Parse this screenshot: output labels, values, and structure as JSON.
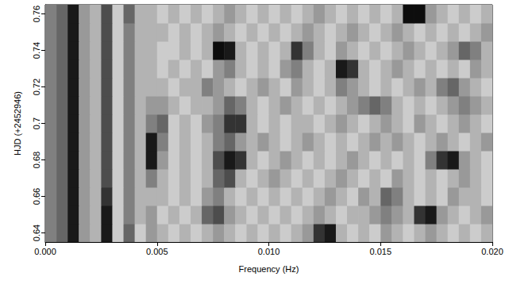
{
  "chart_data": {
    "type": "heatmap",
    "xlabel": "Frequency (Hz)",
    "ylabel": "HJD (+2452946)",
    "xlim": [
      0,
      0.02
    ],
    "ylim": [
      0.635,
      0.765
    ],
    "xticks": [
      {
        "value": 0,
        "label": "0.000"
      },
      {
        "value": 0.005,
        "label": "0.005"
      },
      {
        "value": 0.01,
        "label": "0.010"
      },
      {
        "value": 0.015,
        "label": "0.015"
      },
      {
        "value": 0.02,
        "label": "0.020"
      }
    ],
    "yticks": [
      0.64,
      0.66,
      0.68,
      0.7,
      0.72,
      0.74,
      0.76
    ],
    "zlim": [
      0,
      1
    ],
    "x_bins": [
      0,
      0.0005,
      0.001,
      0.0015,
      0.002,
      0.0025,
      0.003,
      0.0035,
      0.004,
      0.0045,
      0.005,
      0.0055,
      0.006,
      0.0065,
      0.007,
      0.0075,
      0.008,
      0.0085,
      0.009,
      0.0095,
      0.01,
      0.0105,
      0.011,
      0.0115,
      0.012,
      0.0125,
      0.013,
      0.0135,
      0.014,
      0.0145,
      0.015,
      0.0155,
      0.016,
      0.0165,
      0.017,
      0.0175,
      0.018,
      0.0185,
      0.019,
      0.0195,
      0.02
    ],
    "y_bins": [
      0.635,
      0.645,
      0.655,
      0.665,
      0.675,
      0.685,
      0.695,
      0.705,
      0.715,
      0.725,
      0.735,
      0.745,
      0.755,
      0.765
    ],
    "z": [
      [
        0.5,
        0.6,
        0.9,
        0.4,
        0.3,
        0.9,
        0.2,
        0.6,
        0.2,
        0.4,
        0.3,
        0.2,
        0.3,
        0.2,
        0.3,
        0.4,
        0.3,
        0.2,
        0.3,
        0.2,
        0.3,
        0.2,
        0.3,
        0.4,
        0.8,
        0.9,
        0.3,
        0.2,
        0.3,
        0.2,
        0.4,
        0.3,
        0.2,
        0.3,
        0.4,
        0.3,
        0.2,
        0.3,
        0.2,
        0.3
      ],
      [
        0.5,
        0.6,
        0.9,
        0.4,
        0.3,
        0.9,
        0.2,
        0.5,
        0.3,
        0.4,
        0.2,
        0.3,
        0.2,
        0.3,
        0.6,
        0.7,
        0.4,
        0.3,
        0.2,
        0.3,
        0.2,
        0.3,
        0.2,
        0.3,
        0.4,
        0.3,
        0.2,
        0.3,
        0.3,
        0.4,
        0.5,
        0.4,
        0.3,
        0.8,
        0.9,
        0.4,
        0.3,
        0.2,
        0.3,
        0.4
      ],
      [
        0.5,
        0.6,
        0.9,
        0.4,
        0.3,
        0.8,
        0.2,
        0.5,
        0.3,
        0.3,
        0.3,
        0.2,
        0.3,
        0.2,
        0.4,
        0.5,
        0.3,
        0.2,
        0.3,
        0.2,
        0.3,
        0.2,
        0.3,
        0.2,
        0.3,
        0.4,
        0.3,
        0.2,
        0.4,
        0.3,
        0.6,
        0.5,
        0.3,
        0.2,
        0.3,
        0.2,
        0.4,
        0.3,
        0.3,
        0.2
      ],
      [
        0.5,
        0.6,
        0.9,
        0.4,
        0.3,
        0.7,
        0.2,
        0.5,
        0.3,
        0.5,
        0.3,
        0.2,
        0.3,
        0.2,
        0.3,
        0.6,
        0.7,
        0.3,
        0.2,
        0.3,
        0.4,
        0.3,
        0.2,
        0.3,
        0.2,
        0.3,
        0.4,
        0.3,
        0.2,
        0.3,
        0.2,
        0.4,
        0.3,
        0.2,
        0.3,
        0.2,
        0.3,
        0.4,
        0.3,
        0.2
      ],
      [
        0.5,
        0.6,
        0.9,
        0.4,
        0.3,
        0.7,
        0.2,
        0.5,
        0.3,
        0.9,
        0.4,
        0.2,
        0.3,
        0.2,
        0.3,
        0.7,
        0.9,
        0.8,
        0.3,
        0.2,
        0.3,
        0.4,
        0.3,
        0.2,
        0.3,
        0.2,
        0.3,
        0.4,
        0.3,
        0.2,
        0.3,
        0.2,
        0.3,
        0.2,
        0.5,
        0.8,
        0.9,
        0.4,
        0.3,
        0.2
      ],
      [
        0.5,
        0.6,
        0.9,
        0.4,
        0.3,
        0.7,
        0.2,
        0.5,
        0.3,
        0.9,
        0.5,
        0.2,
        0.3,
        0.2,
        0.3,
        0.5,
        0.6,
        0.4,
        0.3,
        0.4,
        0.3,
        0.2,
        0.3,
        0.4,
        0.3,
        0.2,
        0.3,
        0.2,
        0.3,
        0.4,
        0.3,
        0.4,
        0.3,
        0.2,
        0.3,
        0.4,
        0.3,
        0.2,
        0.3,
        0.4
      ],
      [
        0.5,
        0.6,
        0.9,
        0.4,
        0.3,
        0.7,
        0.2,
        0.5,
        0.3,
        0.5,
        0.6,
        0.2,
        0.3,
        0.2,
        0.4,
        0.5,
        0.8,
        0.8,
        0.3,
        0.2,
        0.3,
        0.2,
        0.3,
        0.3,
        0.2,
        0.3,
        0.4,
        0.3,
        0.2,
        0.3,
        0.4,
        0.3,
        0.2,
        0.4,
        0.3,
        0.2,
        0.3,
        0.4,
        0.3,
        0.2
      ],
      [
        0.5,
        0.6,
        0.9,
        0.4,
        0.3,
        0.7,
        0.2,
        0.5,
        0.3,
        0.4,
        0.4,
        0.3,
        0.2,
        0.3,
        0.3,
        0.4,
        0.6,
        0.5,
        0.3,
        0.2,
        0.3,
        0.4,
        0.3,
        0.2,
        0.3,
        0.2,
        0.3,
        0.4,
        0.5,
        0.6,
        0.5,
        0.3,
        0.2,
        0.3,
        0.2,
        0.3,
        0.4,
        0.5,
        0.4,
        0.3
      ],
      [
        0.5,
        0.6,
        0.9,
        0.4,
        0.3,
        0.7,
        0.2,
        0.5,
        0.3,
        0.3,
        0.3,
        0.2,
        0.3,
        0.3,
        0.5,
        0.4,
        0.3,
        0.2,
        0.3,
        0.4,
        0.3,
        0.2,
        0.4,
        0.3,
        0.2,
        0.3,
        0.5,
        0.4,
        0.3,
        0.2,
        0.3,
        0.2,
        0.3,
        0.4,
        0.3,
        0.5,
        0.6,
        0.4,
        0.3,
        0.2
      ],
      [
        0.5,
        0.6,
        0.9,
        0.4,
        0.3,
        0.7,
        0.2,
        0.5,
        0.3,
        0.3,
        0.2,
        0.3,
        0.2,
        0.3,
        0.2,
        0.4,
        0.5,
        0.3,
        0.2,
        0.3,
        0.2,
        0.4,
        0.5,
        0.3,
        0.2,
        0.3,
        0.9,
        0.8,
        0.3,
        0.2,
        0.3,
        0.4,
        0.3,
        0.2,
        0.3,
        0.2,
        0.3,
        0.2,
        0.4,
        0.3
      ],
      [
        0.5,
        0.6,
        0.9,
        0.4,
        0.3,
        0.7,
        0.2,
        0.5,
        0.3,
        0.3,
        0.2,
        0.2,
        0.3,
        0.2,
        0.3,
        0.95,
        0.9,
        0.3,
        0.2,
        0.3,
        0.2,
        0.3,
        0.8,
        0.5,
        0.3,
        0.2,
        0.4,
        0.3,
        0.2,
        0.3,
        0.2,
        0.3,
        0.4,
        0.3,
        0.2,
        0.3,
        0.4,
        0.6,
        0.5,
        0.3
      ],
      [
        0.5,
        0.6,
        0.9,
        0.4,
        0.3,
        0.7,
        0.2,
        0.5,
        0.3,
        0.3,
        0.3,
        0.2,
        0.3,
        0.2,
        0.3,
        0.4,
        0.3,
        0.2,
        0.3,
        0.2,
        0.3,
        0.2,
        0.3,
        0.4,
        0.3,
        0.2,
        0.3,
        0.4,
        0.3,
        0.2,
        0.3,
        0.4,
        0.3,
        0.2,
        0.3,
        0.2,
        0.3,
        0.2,
        0.3,
        0.4
      ],
      [
        0.5,
        0.6,
        0.9,
        0.4,
        0.3,
        0.7,
        0.2,
        0.6,
        0.3,
        0.3,
        0.2,
        0.3,
        0.2,
        0.3,
        0.2,
        0.3,
        0.4,
        0.3,
        0.2,
        0.3,
        0.2,
        0.3,
        0.2,
        0.3,
        0.4,
        0.3,
        0.2,
        0.3,
        0.2,
        0.3,
        0.2,
        0.3,
        0.95,
        0.95,
        0.4,
        0.3,
        0.2,
        0.3,
        0.2,
        0.3
      ]
    ]
  }
}
